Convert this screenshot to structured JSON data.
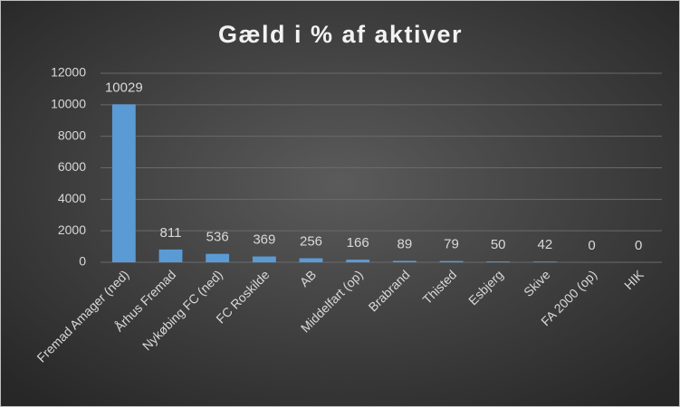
{
  "chart_data": {
    "type": "bar",
    "title": "Gæld i % af aktiver",
    "categories": [
      "Fremad Amager (ned)",
      "Århus Fremad",
      "Nykøbing FC (ned)",
      "FC Roskilde",
      "AB",
      "Middelfart (op)",
      "Brabrand",
      "Thisted",
      "Esbjerg",
      "Skive",
      "FA 2000 (op)",
      "HIK"
    ],
    "values": [
      10029,
      811,
      536,
      369,
      256,
      166,
      89,
      79,
      50,
      42,
      0,
      0
    ],
    "color": "#5b9bd5",
    "ylim": [
      0,
      12000
    ],
    "yticks": [
      0,
      2000,
      4000,
      6000,
      8000,
      10000,
      12000
    ],
    "grid": true
  }
}
